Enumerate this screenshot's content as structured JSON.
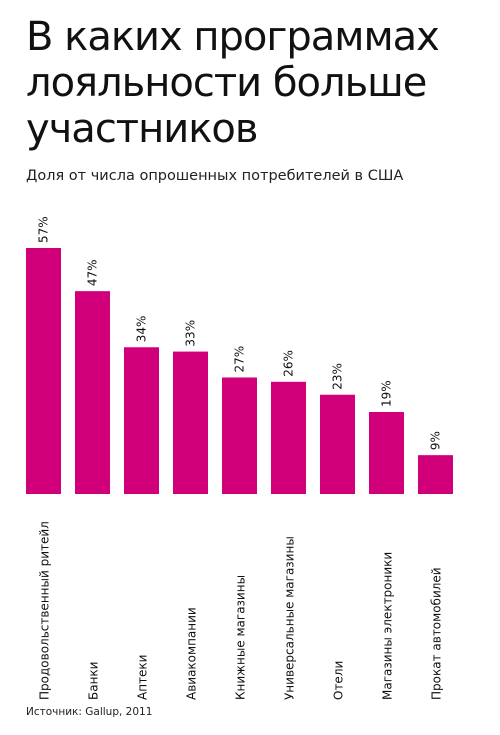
{
  "title": "В каких программах лояльности больше участников",
  "subtitle": "Доля от числа опрошенных потребителей в США",
  "source": "Источник: Gallup, 2011",
  "colors": {
    "bar": "#d1007a",
    "text": "#111111"
  },
  "chart_data": {
    "type": "bar",
    "title": "В каких программах лояльности больше участников",
    "subtitle": "Доля от числа опрошенных потребителей в США",
    "categories": [
      "Продовольственный ритейл",
      "Банки",
      "Аптеки",
      "Авиакомпании",
      "Книжные магазины",
      "Универсальные магазины",
      "Отели",
      "Магазины электроники",
      "Прокат автомобилей"
    ],
    "values": [
      57,
      47,
      34,
      33,
      27,
      26,
      23,
      19,
      9
    ],
    "data_labels": [
      "57%",
      "47%",
      "34%",
      "33%",
      "27%",
      "26%",
      "23%",
      "19%",
      "9%"
    ],
    "unit": "%",
    "ylim": [
      0,
      57
    ],
    "grid": false,
    "legend": "none"
  }
}
